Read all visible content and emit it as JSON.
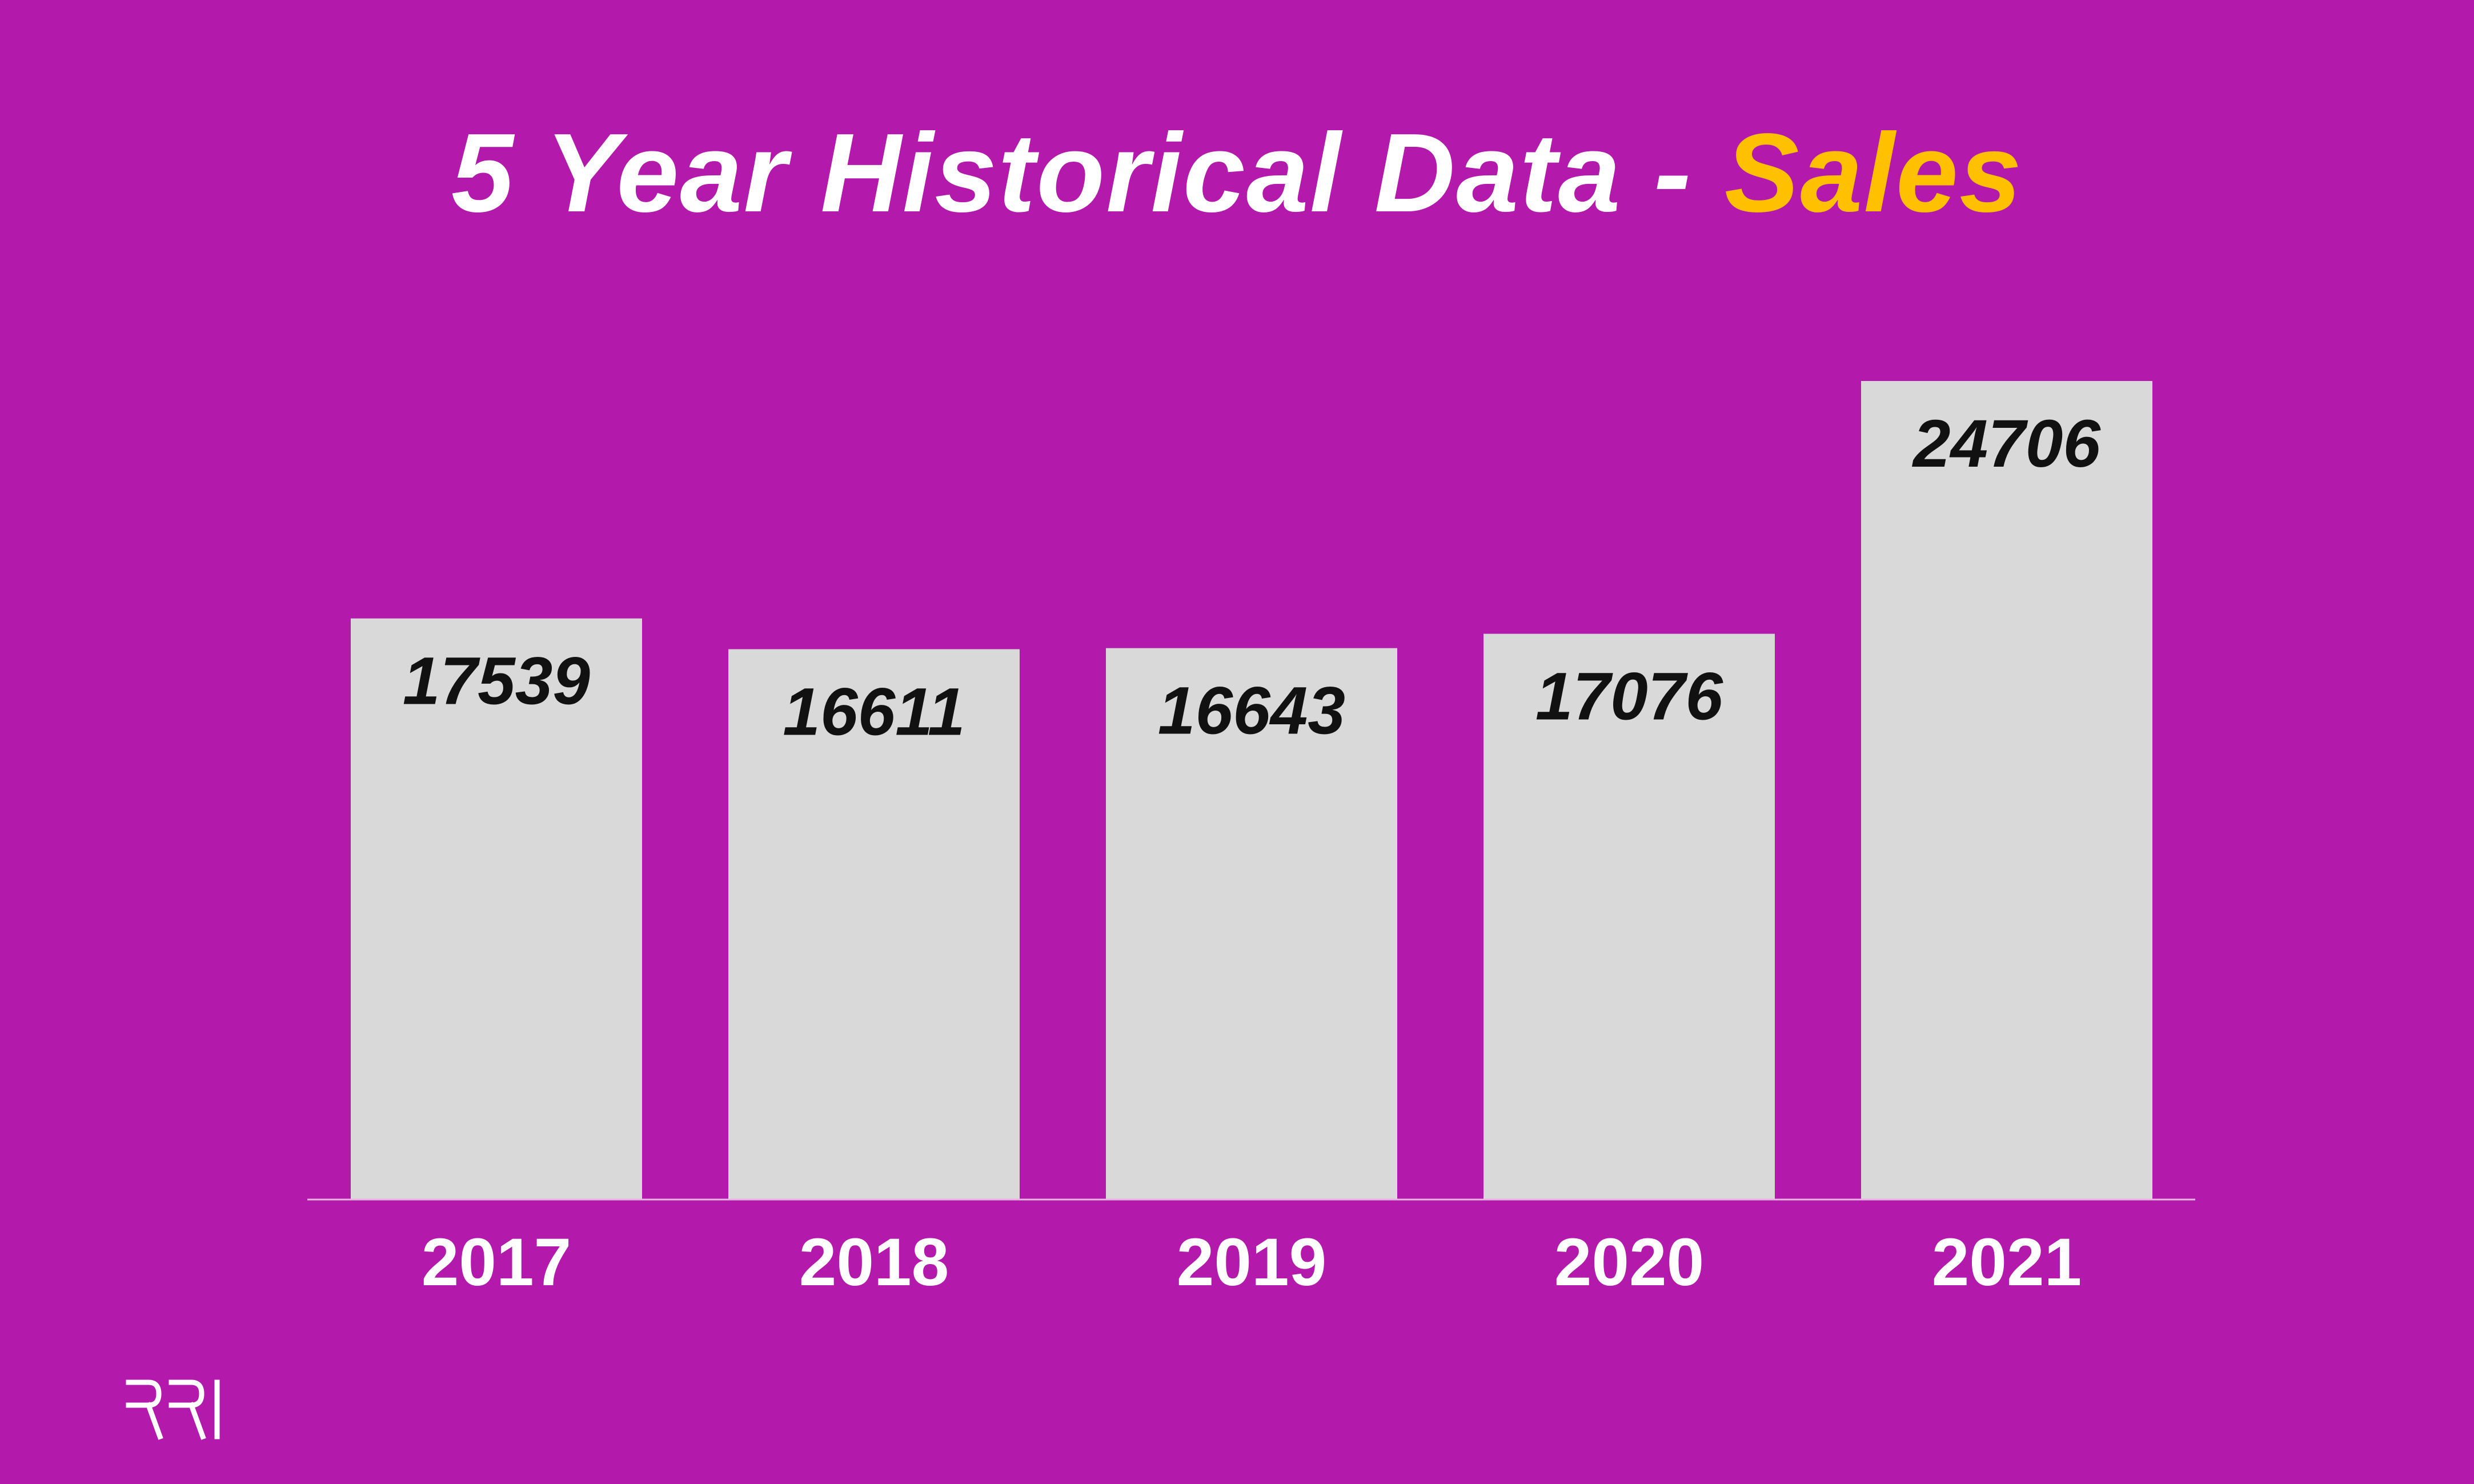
{
  "colors": {
    "background": "#b31aab",
    "bar": "#d9d9d9",
    "title": "#ffffff",
    "title_accent": "#ffc000",
    "value_text": "#111111",
    "axis_text": "#ffffff",
    "baseline": "#e6b3e3"
  },
  "title": {
    "main": "5 Year Historical Data - ",
    "accent": "Sales"
  },
  "logo": {
    "text": "RRI"
  },
  "chart_data": {
    "type": "bar",
    "title": "5 Year Historical Data - Sales",
    "categories": [
      "2017",
      "2018",
      "2019",
      "2020",
      "2021"
    ],
    "values": [
      17539,
      16611,
      16643,
      17076,
      24706
    ],
    "xlabel": "",
    "ylabel": "",
    "grid": false,
    "legend": "none"
  }
}
